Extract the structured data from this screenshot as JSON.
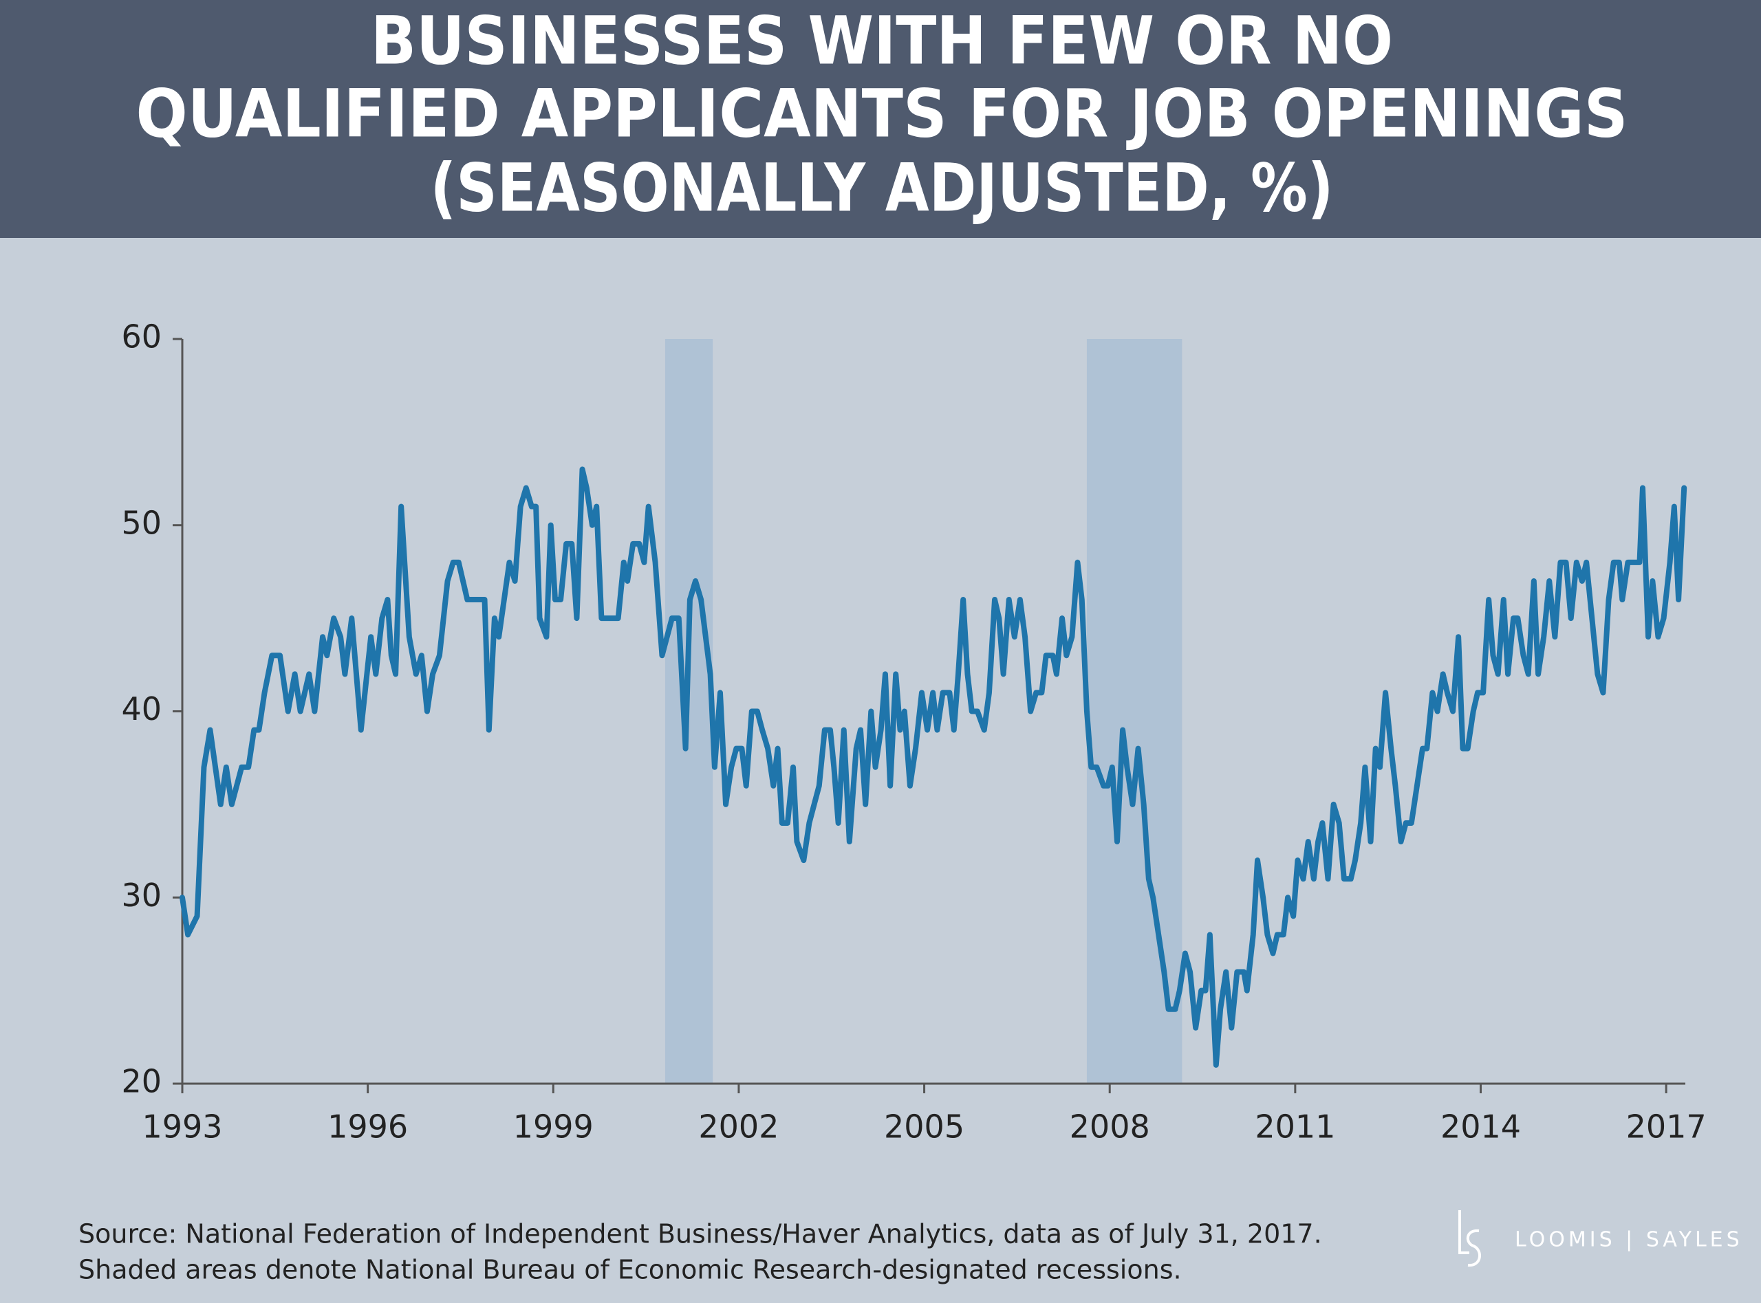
{
  "chart_data": {
    "type": "line",
    "title": [
      "BUSINESSES WITH FEW OR NO",
      "QUALIFIED APPLICANTS FOR JOB OPENINGS"
    ],
    "subtitle": "(SEASONALLY ADJUSTED, %)",
    "source": [
      "Source: National Federation of Independent Business/Haver Analytics, data as of July 31, 2017.",
      "Shaded areas denote National Bureau of Economic Research-designated recessions."
    ],
    "logo": "LOOMIS | SAYLES",
    "color": "#1f75ab",
    "recession_color": "#afc2d5",
    "recessions": [
      [
        2000.81,
        2001.58
      ],
      [
        2007.63,
        2009.17
      ]
    ],
    "xlim": [
      1993,
      2017.31
    ],
    "xticks": [
      1993,
      1996,
      1999,
      2002,
      2005,
      2008,
      2011,
      2014,
      2017
    ],
    "ylim": [
      20,
      60
    ],
    "yticks": [
      20,
      30,
      40,
      50,
      60
    ],
    "x": [
      1993.0,
      1993.09,
      1993.24,
      1993.35,
      1993.45,
      1993.62,
      1993.71,
      1993.8,
      1993.96,
      1994.07,
      1994.16,
      1994.24,
      1994.33,
      1994.45,
      1994.58,
      1994.71,
      1994.82,
      1994.91,
      1995.05,
      1995.14,
      1995.27,
      1995.34,
      1995.45,
      1995.56,
      1995.63,
      1995.74,
      1995.89,
      1996.05,
      1996.13,
      1996.23,
      1996.32,
      1996.38,
      1996.45,
      1996.54,
      1996.67,
      1996.78,
      1996.87,
      1996.96,
      1997.05,
      1997.16,
      1997.29,
      1997.38,
      1997.47,
      1997.61,
      1997.89,
      1997.96,
      1998.05,
      1998.12,
      1998.29,
      1998.38,
      1998.47,
      1998.56,
      1998.65,
      1998.72,
      1998.78,
      1998.89,
      1998.96,
      1999.03,
      1999.12,
      1999.21,
      1999.3,
      1999.38,
      1999.47,
      1999.54,
      1999.63,
      1999.7,
      1999.78,
      2000.05,
      2000.14,
      2000.2,
      2000.29,
      2000.39,
      2000.47,
      2000.54,
      2000.65,
      2000.76,
      2000.92,
      2001.03,
      2001.14,
      2001.21,
      2001.3,
      2001.39,
      2001.54,
      2001.61,
      2001.7,
      2001.79,
      2001.88,
      2001.96,
      2002.05,
      2002.12,
      2002.21,
      2002.3,
      2002.38,
      2002.47,
      2002.56,
      2002.63,
      2002.7,
      2002.79,
      2002.88,
      2002.94,
      2003.05,
      2003.14,
      2003.3,
      2003.39,
      2003.48,
      2003.54,
      2003.61,
      2003.7,
      2003.79,
      2003.9,
      2003.97,
      2004.05,
      2004.14,
      2004.21,
      2004.3,
      2004.37,
      2004.45,
      2004.54,
      2004.61,
      2004.68,
      2004.77,
      2004.86,
      2004.96,
      2005.05,
      2005.14,
      2005.21,
      2005.3,
      2005.41,
      2005.48,
      2005.55,
      2005.63,
      2005.7,
      2005.77,
      2005.86,
      2005.97,
      2006.05,
      2006.14,
      2006.21,
      2006.28,
      2006.37,
      2006.46,
      2006.55,
      2006.63,
      2006.72,
      2006.81,
      2006.9,
      2006.97,
      2007.08,
      2007.14,
      2007.23,
      2007.3,
      2007.39,
      2007.48,
      2007.55,
      2007.63,
      2007.7,
      2007.79,
      2007.9,
      2007.97,
      2008.04,
      2008.12,
      2008.21,
      2008.28,
      2008.37,
      2008.46,
      2008.55,
      2008.63,
      2008.7,
      2008.79,
      2008.88,
      2008.95,
      2009.06,
      2009.13,
      2009.22,
      2009.3,
      2009.39,
      2009.48,
      2009.55,
      2009.62,
      2009.72,
      2009.79,
      2009.88,
      2009.97,
      2010.06,
      2010.17,
      2010.22,
      2010.32,
      2010.39,
      2010.48,
      2010.55,
      2010.64,
      2010.71,
      2010.81,
      2010.88,
      2010.97,
      2011.04,
      2011.13,
      2011.21,
      2011.3,
      2011.37,
      2011.44,
      2011.53,
      2011.62,
      2011.71,
      2011.79,
      2011.9,
      2011.97,
      2012.06,
      2012.13,
      2012.22,
      2012.3,
      2012.37,
      2012.46,
      2012.55,
      2012.62,
      2012.71,
      2012.79,
      2012.88,
      2012.97,
      2013.06,
      2013.13,
      2013.22,
      2013.3,
      2013.39,
      2013.46,
      2013.55,
      2013.64,
      2013.71,
      2013.79,
      2013.88,
      2013.95,
      2014.04,
      2014.13,
      2014.2,
      2014.28,
      2014.37,
      2014.44,
      2014.53,
      2014.6,
      2014.69,
      2014.77,
      2014.86,
      2014.93,
      2015.02,
      2015.11,
      2015.2,
      2015.29,
      2015.38,
      2015.46,
      2015.55,
      2015.64,
      2015.71,
      2015.8,
      2015.89,
      2015.98,
      2016.07,
      2016.15,
      2016.24,
      2016.29,
      2016.38,
      2016.49,
      2016.57,
      2016.62,
      2016.71,
      2016.78,
      2016.87,
      2016.96,
      2017.06,
      2017.13,
      2017.2,
      2017.29
    ],
    "values": [
      30,
      28,
      29,
      37,
      39,
      35,
      37,
      35,
      37,
      37,
      39,
      39,
      41,
      43,
      43,
      40,
      42,
      40,
      42,
      40,
      44,
      43,
      45,
      44,
      42,
      45,
      39,
      44,
      42,
      45,
      46,
      43,
      42,
      51,
      44,
      42,
      43,
      40,
      42,
      43,
      47,
      48,
      48,
      46,
      46,
      39,
      45,
      44,
      48,
      47,
      51,
      52,
      51,
      51,
      45,
      44,
      50,
      46,
      46,
      49,
      49,
      45,
      53,
      52,
      50,
      51,
      45,
      45,
      48,
      47,
      49,
      49,
      48,
      51,
      48,
      43,
      45,
      45,
      38,
      46,
      47,
      46,
      42,
      37,
      41,
      35,
      37,
      38,
      38,
      36,
      40,
      40,
      39,
      38,
      36,
      38,
      34,
      34,
      37,
      33,
      32,
      34,
      36,
      39,
      39,
      37,
      34,
      39,
      33,
      38,
      39,
      35,
      40,
      37,
      39,
      42,
      36,
      42,
      39,
      40,
      36,
      38,
      41,
      39,
      41,
      39,
      41,
      41,
      39,
      42,
      46,
      42,
      40,
      40,
      39,
      41,
      46,
      45,
      42,
      46,
      44,
      46,
      44,
      40,
      41,
      41,
      43,
      43,
      42,
      45,
      43,
      44,
      48,
      46,
      40,
      37,
      37,
      36,
      36,
      37,
      33,
      39,
      37,
      35,
      38,
      35,
      31,
      30,
      28,
      26,
      24,
      24,
      25,
      27,
      26,
      23,
      25,
      25,
      28,
      21,
      24,
      26,
      23,
      26,
      26,
      25,
      28,
      32,
      30,
      28,
      27,
      28,
      28,
      30,
      29,
      32,
      31,
      33,
      31,
      33,
      34,
      31,
      35,
      34,
      31,
      31,
      32,
      34,
      37,
      33,
      38,
      37,
      41,
      38,
      36,
      33,
      34,
      34,
      36,
      38,
      38,
      41,
      40,
      42,
      41,
      40,
      44,
      38,
      38,
      40,
      41,
      41,
      46,
      43,
      42,
      46,
      42,
      45,
      45,
      43,
      42,
      47,
      42,
      44,
      47,
      44,
      48,
      48,
      45,
      48,
      47,
      48,
      45,
      42,
      41,
      46,
      48,
      48,
      46,
      48,
      48,
      48,
      52,
      44,
      47,
      44,
      45,
      48,
      51,
      46,
      52
    ]
  }
}
